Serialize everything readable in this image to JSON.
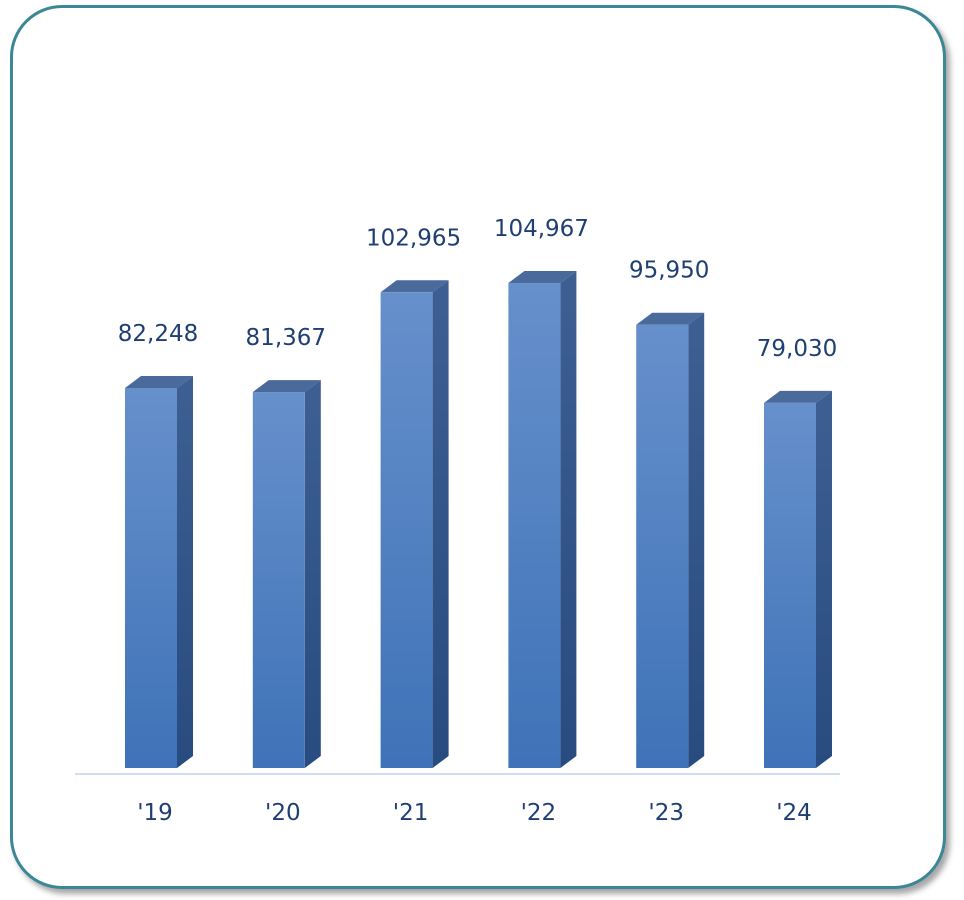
{
  "chart_data": {
    "type": "bar",
    "style": "3d-column",
    "categories": [
      "'19",
      "'20",
      "'21",
      "'22",
      "'23",
      "'24"
    ],
    "values": [
      82248,
      81367,
      102965,
      104967,
      95950,
      79030
    ],
    "data_labels": [
      "82,248",
      "81,367",
      "102,965",
      "104,967",
      "95,950",
      "79,030"
    ],
    "title": "",
    "xlabel": "",
    "ylabel": "",
    "ylim": [
      0,
      105000
    ],
    "grid": false,
    "legend": "none",
    "colors": {
      "bar_front": "#4a7cc0",
      "bar_side": "#2f5186",
      "bar_top": "#4a6a9c",
      "label": "#1f3f73",
      "frame": "#3b8796",
      "axis": "#cfdff0"
    }
  }
}
